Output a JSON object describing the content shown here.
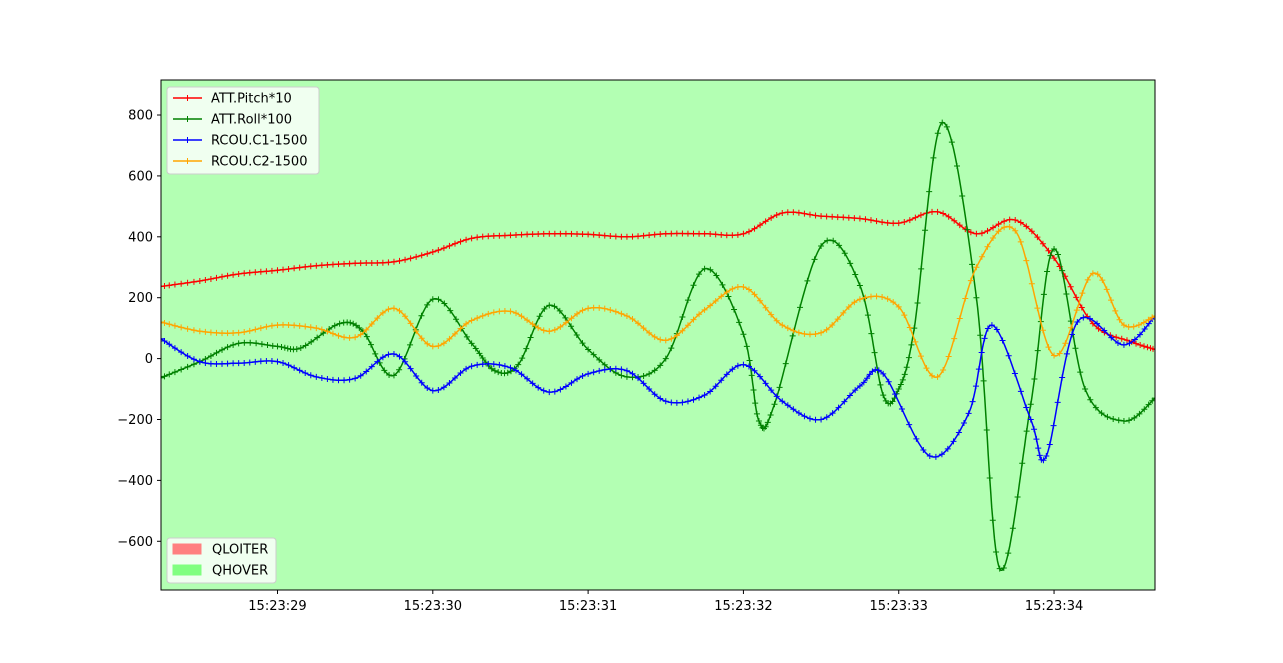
{
  "chart_data": {
    "type": "line",
    "title": "",
    "xlabel": "",
    "ylabel": "",
    "xlim": [
      28.25,
      34.65
    ],
    "ylim": [
      -760,
      915
    ],
    "x_ticks": [
      {
        "value": 29,
        "label": "15:23:29"
      },
      {
        "value": 30,
        "label": "15:23:30"
      },
      {
        "value": 31,
        "label": "15:23:31"
      },
      {
        "value": 32,
        "label": "15:23:32"
      },
      {
        "value": 33,
        "label": "15:23:33"
      },
      {
        "value": 34,
        "label": "15:23:34"
      }
    ],
    "y_ticks": [
      {
        "value": 800,
        "label": "800"
      },
      {
        "value": 600,
        "label": "600"
      },
      {
        "value": 400,
        "label": "400"
      },
      {
        "value": 200,
        "label": "200"
      },
      {
        "value": 0,
        "label": "0"
      },
      {
        "value": -200,
        "label": "−200"
      },
      {
        "value": -400,
        "label": "−400"
      },
      {
        "value": -600,
        "label": "−600"
      }
    ],
    "grid": false,
    "background_color": "#b3ffb3",
    "legend_placement": "upper-left",
    "mode_legend_placement": "lower-left",
    "marker": "plus",
    "series": [
      {
        "name": "ATT.Pitch*10",
        "color": "#ff0000",
        "points": [
          [
            28.25,
            237
          ],
          [
            28.5,
            255
          ],
          [
            28.75,
            278
          ],
          [
            29.0,
            290
          ],
          [
            29.25,
            305
          ],
          [
            29.5,
            313
          ],
          [
            29.75,
            318
          ],
          [
            30.0,
            350
          ],
          [
            30.25,
            395
          ],
          [
            30.5,
            405
          ],
          [
            30.75,
            410
          ],
          [
            31.0,
            408
          ],
          [
            31.25,
            400
          ],
          [
            31.5,
            410
          ],
          [
            31.75,
            410
          ],
          [
            32.0,
            410
          ],
          [
            32.25,
            478
          ],
          [
            32.5,
            468
          ],
          [
            32.75,
            460
          ],
          [
            33.0,
            445
          ],
          [
            33.25,
            482
          ],
          [
            33.5,
            410
          ],
          [
            33.75,
            455
          ],
          [
            34.0,
            330
          ],
          [
            34.25,
            115
          ],
          [
            34.5,
            55
          ],
          [
            34.65,
            30
          ]
        ]
      },
      {
        "name": "ATT.Roll*100",
        "color": "#008000",
        "points": [
          [
            28.25,
            -63
          ],
          [
            28.5,
            -10
          ],
          [
            28.75,
            50
          ],
          [
            29.0,
            40
          ],
          [
            29.15,
            35
          ],
          [
            29.4,
            115
          ],
          [
            29.55,
            90
          ],
          [
            29.75,
            -55
          ],
          [
            30.0,
            195
          ],
          [
            30.25,
            50
          ],
          [
            30.4,
            -40
          ],
          [
            30.55,
            -20
          ],
          [
            30.75,
            175
          ],
          [
            31.0,
            30
          ],
          [
            31.25,
            -60
          ],
          [
            31.5,
            0
          ],
          [
            31.75,
            295
          ],
          [
            32.0,
            80
          ],
          [
            32.1,
            -205
          ],
          [
            32.2,
            -150
          ],
          [
            32.5,
            370
          ],
          [
            32.75,
            240
          ],
          [
            32.9,
            -120
          ],
          [
            33.0,
            -100
          ],
          [
            33.1,
            100
          ],
          [
            33.28,
            775
          ],
          [
            33.5,
            200
          ],
          [
            33.65,
            -690
          ],
          [
            33.85,
            -150
          ],
          [
            34.0,
            360
          ],
          [
            34.2,
            -100
          ],
          [
            34.45,
            -205
          ],
          [
            34.65,
            -130
          ]
        ]
      },
      {
        "name": "RCOU.C1-1500",
        "color": "#0000ff",
        "points": [
          [
            28.25,
            65
          ],
          [
            28.5,
            -10
          ],
          [
            28.75,
            -15
          ],
          [
            29.0,
            -10
          ],
          [
            29.25,
            -60
          ],
          [
            29.5,
            -65
          ],
          [
            29.75,
            15
          ],
          [
            30.0,
            -105
          ],
          [
            30.25,
            -25
          ],
          [
            30.5,
            -30
          ],
          [
            30.75,
            -110
          ],
          [
            31.0,
            -50
          ],
          [
            31.25,
            -40
          ],
          [
            31.5,
            -140
          ],
          [
            31.75,
            -120
          ],
          [
            32.0,
            -20
          ],
          [
            32.25,
            -140
          ],
          [
            32.5,
            -200
          ],
          [
            32.75,
            -90
          ],
          [
            32.9,
            -50
          ],
          [
            33.2,
            -320
          ],
          [
            33.45,
            -180
          ],
          [
            33.6,
            110
          ],
          [
            33.85,
            -200
          ],
          [
            33.95,
            -320
          ],
          [
            34.15,
            120
          ],
          [
            34.45,
            45
          ],
          [
            34.65,
            140
          ]
        ]
      },
      {
        "name": "RCOU.C2-1500",
        "color": "#ffa500",
        "points": [
          [
            28.25,
            120
          ],
          [
            28.5,
            90
          ],
          [
            28.75,
            85
          ],
          [
            29.0,
            110
          ],
          [
            29.25,
            100
          ],
          [
            29.5,
            70
          ],
          [
            29.75,
            165
          ],
          [
            30.0,
            40
          ],
          [
            30.25,
            125
          ],
          [
            30.5,
            155
          ],
          [
            30.75,
            90
          ],
          [
            31.0,
            165
          ],
          [
            31.25,
            140
          ],
          [
            31.5,
            60
          ],
          [
            31.75,
            160
          ],
          [
            32.0,
            235
          ],
          [
            32.25,
            110
          ],
          [
            32.5,
            85
          ],
          [
            32.75,
            195
          ],
          [
            33.0,
            170
          ],
          [
            33.25,
            -60
          ],
          [
            33.5,
            300
          ],
          [
            33.75,
            420
          ],
          [
            34.0,
            10
          ],
          [
            34.25,
            280
          ],
          [
            34.45,
            110
          ],
          [
            34.65,
            140
          ]
        ]
      }
    ],
    "mode_legend": [
      {
        "name": "QLOITER",
        "color": "#ff8080"
      },
      {
        "name": "QHOVER",
        "color": "#80ff80"
      }
    ]
  }
}
